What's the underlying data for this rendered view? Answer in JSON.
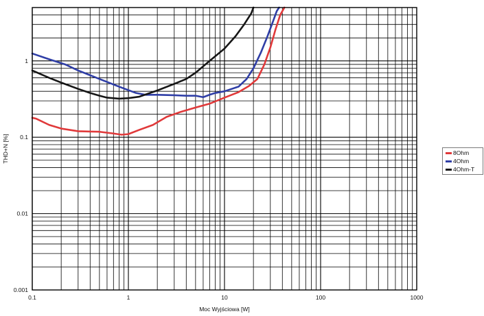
{
  "chart_data": {
    "type": "line",
    "title": "",
    "xlabel": "Moc Wyjściowa [W]",
    "ylabel": "THD+N [%]",
    "x_scale": "log",
    "y_scale": "log",
    "xlim": [
      0.1,
      1000
    ],
    "ylim": [
      0.001,
      5
    ],
    "grid": true,
    "legend_position": "right",
    "x_tick_labels": [
      "0.1",
      "1",
      "10",
      "100",
      "1000"
    ],
    "x_tick_values": [
      0.1,
      1,
      10,
      100,
      1000
    ],
    "y_tick_labels": [
      "0.001",
      "0.01",
      "0.1",
      "1"
    ],
    "y_tick_values": [
      0.001,
      0.01,
      0.1,
      1
    ],
    "series": [
      {
        "name": "8Ohm",
        "color": "#e0393a",
        "x": [
          0.1,
          0.11,
          0.15,
          0.2,
          0.3,
          0.5,
          0.7,
          0.85,
          1.0,
          1.3,
          1.8,
          2.5,
          3.5,
          5,
          7,
          10,
          14,
          18,
          22,
          26,
          30,
          34,
          38,
          42
        ],
        "y": [
          0.18,
          0.175,
          0.145,
          0.13,
          0.12,
          0.118,
          0.112,
          0.108,
          0.11,
          0.125,
          0.145,
          0.185,
          0.215,
          0.245,
          0.275,
          0.33,
          0.39,
          0.47,
          0.58,
          0.9,
          1.5,
          2.6,
          4.0,
          5.0
        ]
      },
      {
        "name": "4Ohm",
        "color": "#2f3ea6",
        "x": [
          0.1,
          0.15,
          0.22,
          0.3,
          0.5,
          0.8,
          1.2,
          1.5,
          2,
          3,
          4,
          5,
          6,
          7,
          8,
          10,
          14,
          17,
          20,
          24,
          28,
          32,
          35,
          37
        ],
        "y": [
          1.25,
          1.05,
          0.9,
          0.75,
          0.58,
          0.46,
          0.38,
          0.36,
          0.36,
          0.355,
          0.35,
          0.35,
          0.335,
          0.36,
          0.38,
          0.4,
          0.46,
          0.58,
          0.8,
          1.3,
          2.1,
          3.3,
          4.5,
          5.0
        ]
      },
      {
        "name": "4Ohm-T",
        "color": "#161616",
        "x": [
          0.1,
          0.15,
          0.2,
          0.3,
          0.4,
          0.5,
          0.6,
          0.8,
          1.0,
          1.3,
          2,
          3,
          4,
          5,
          7,
          10,
          13,
          16,
          19,
          20
        ],
        "y": [
          0.75,
          0.6,
          0.52,
          0.43,
          0.38,
          0.35,
          0.33,
          0.32,
          0.325,
          0.34,
          0.41,
          0.5,
          0.58,
          0.7,
          1.0,
          1.45,
          2.1,
          3.0,
          4.2,
          5.0
        ]
      }
    ]
  }
}
